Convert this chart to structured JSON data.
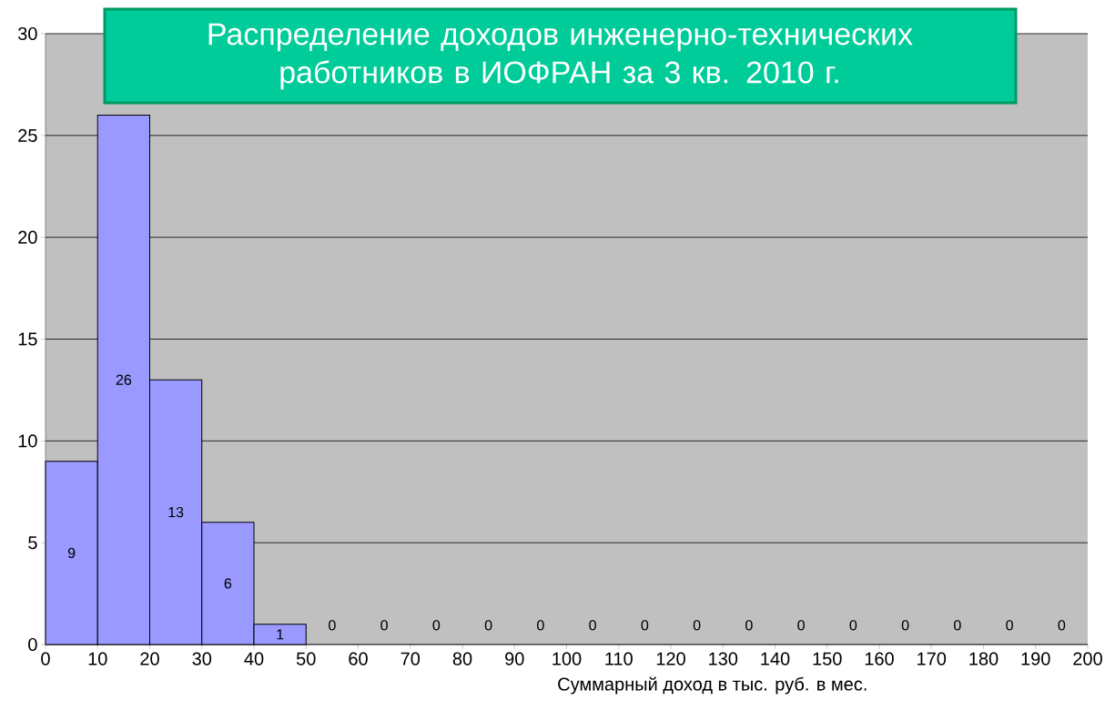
{
  "chart_data": {
    "type": "histogram",
    "title": "Распределение доходов инженерно-технических работников в ИОФРАН за 3 кв. 2010 г.",
    "xlabel": "Суммарный доход в тыс. руб. в мес.",
    "bins": [
      0,
      10,
      20,
      30,
      40,
      50,
      60,
      70,
      80,
      90,
      100,
      110,
      120,
      130,
      140,
      150,
      160,
      170,
      180,
      190,
      200
    ],
    "values": [
      9,
      26,
      13,
      6,
      1,
      0,
      0,
      0,
      0,
      0,
      0,
      0,
      0,
      0,
      0,
      0,
      0,
      0,
      0,
      0
    ],
    "color": "#9999ff",
    "xlim": [
      0,
      200
    ],
    "xticks": [
      0,
      10,
      20,
      30,
      40,
      50,
      60,
      70,
      80,
      90,
      100,
      110,
      120,
      130,
      140,
      150,
      160,
      170,
      180,
      190,
      200
    ],
    "ylim": [
      0,
      30
    ],
    "yticks": [
      0,
      5,
      10,
      15,
      20,
      25,
      30
    ],
    "grid": "y",
    "data_labels": true
  }
}
